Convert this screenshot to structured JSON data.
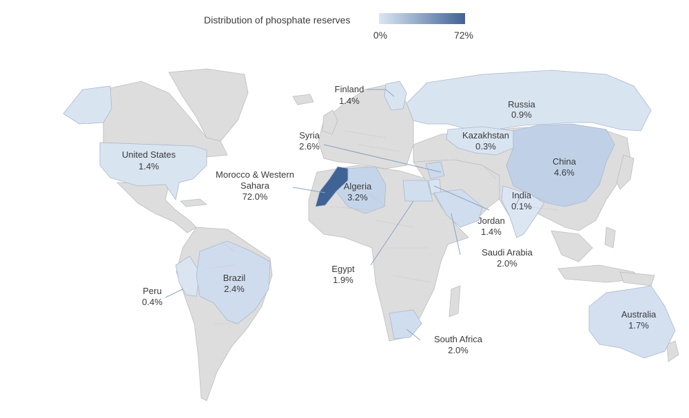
{
  "legend": {
    "title": "Distribution of phosphate reserves",
    "min_label": "0%",
    "max_label": "72%",
    "color_low": "#dce6f3",
    "color_high": "#3f6394"
  },
  "countries": {
    "russia": {
      "name": "Russia",
      "value": "0.9%",
      "share": 0.9
    },
    "finland": {
      "name": "Finland",
      "value": "1.4%",
      "share": 1.4
    },
    "kazakhstan": {
      "name": "Kazakhstan",
      "value": "0.3%",
      "share": 0.3
    },
    "china": {
      "name": "China",
      "value": "4.6%",
      "share": 4.6
    },
    "syria": {
      "name": "Syria",
      "value": "2.6%",
      "share": 2.6
    },
    "united_states": {
      "name": "United States",
      "value": "1.4%",
      "share": 1.4
    },
    "morocco": {
      "name": "Morocco & Western Sahara",
      "value": "72.0%",
      "share": 72.0
    },
    "algeria": {
      "name": "Algeria",
      "value": "3.2%",
      "share": 3.2
    },
    "india": {
      "name": "India",
      "value": "0.1%",
      "share": 0.1
    },
    "jordan": {
      "name": "Jordan",
      "value": "1.4%",
      "share": 1.4
    },
    "saudi_arabia": {
      "name": "Saudi Arabia",
      "value": "2.0%",
      "share": 2.0
    },
    "egypt": {
      "name": "Egypt",
      "value": "1.9%",
      "share": 1.9
    },
    "peru": {
      "name": "Peru",
      "value": "0.4%",
      "share": 0.4
    },
    "brazil": {
      "name": "Brazil",
      "value": "2.4%",
      "share": 2.4
    },
    "australia": {
      "name": "Australia",
      "value": "1.7%",
      "share": 1.7
    },
    "south_africa": {
      "name": "South Africa",
      "value": "2.0%",
      "share": 2.0
    }
  }
}
